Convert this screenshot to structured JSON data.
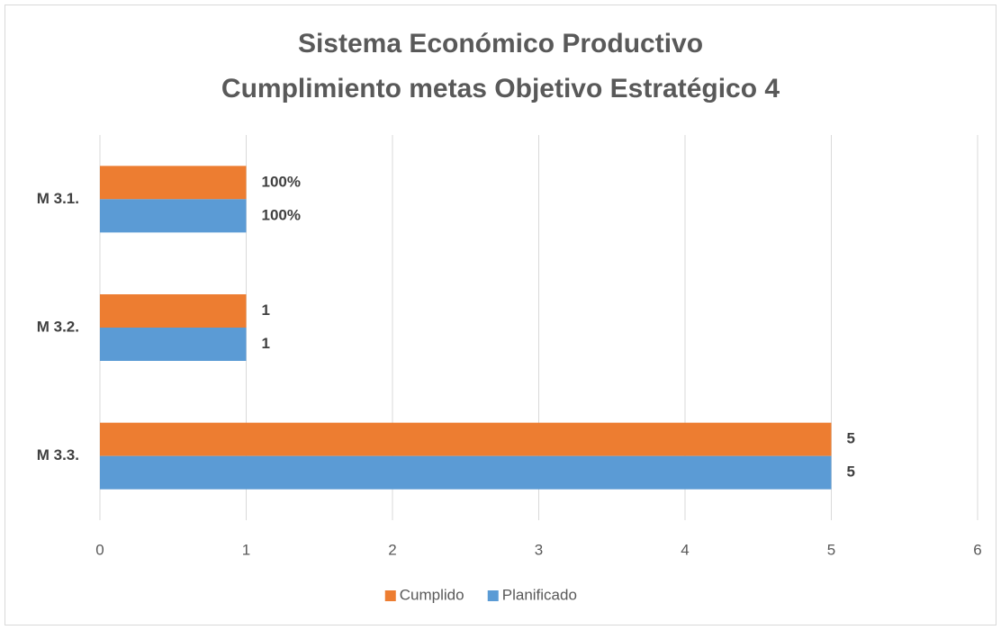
{
  "chart_data": {
    "type": "hbar",
    "title": [
      "Sistema Económico Productivo",
      "Cumplimiento metas Objetivo Estratégico 4"
    ],
    "categories": [
      "M 3.1.",
      "M 3.2.",
      "M 3.3."
    ],
    "series": [
      {
        "name": "Cumplido",
        "color": "#ed7d31",
        "values": [
          1,
          1,
          5
        ],
        "value_labels": [
          "100%",
          "1",
          "5"
        ]
      },
      {
        "name": "Planificado",
        "color": "#5b9bd5",
        "values": [
          1,
          1,
          5
        ],
        "value_labels": [
          "100%",
          "1",
          "5"
        ]
      }
    ],
    "xlim": [
      0,
      6
    ],
    "xticks": [
      0,
      1,
      2,
      3,
      4,
      5,
      6
    ],
    "grid": true,
    "legend": "bottom"
  }
}
